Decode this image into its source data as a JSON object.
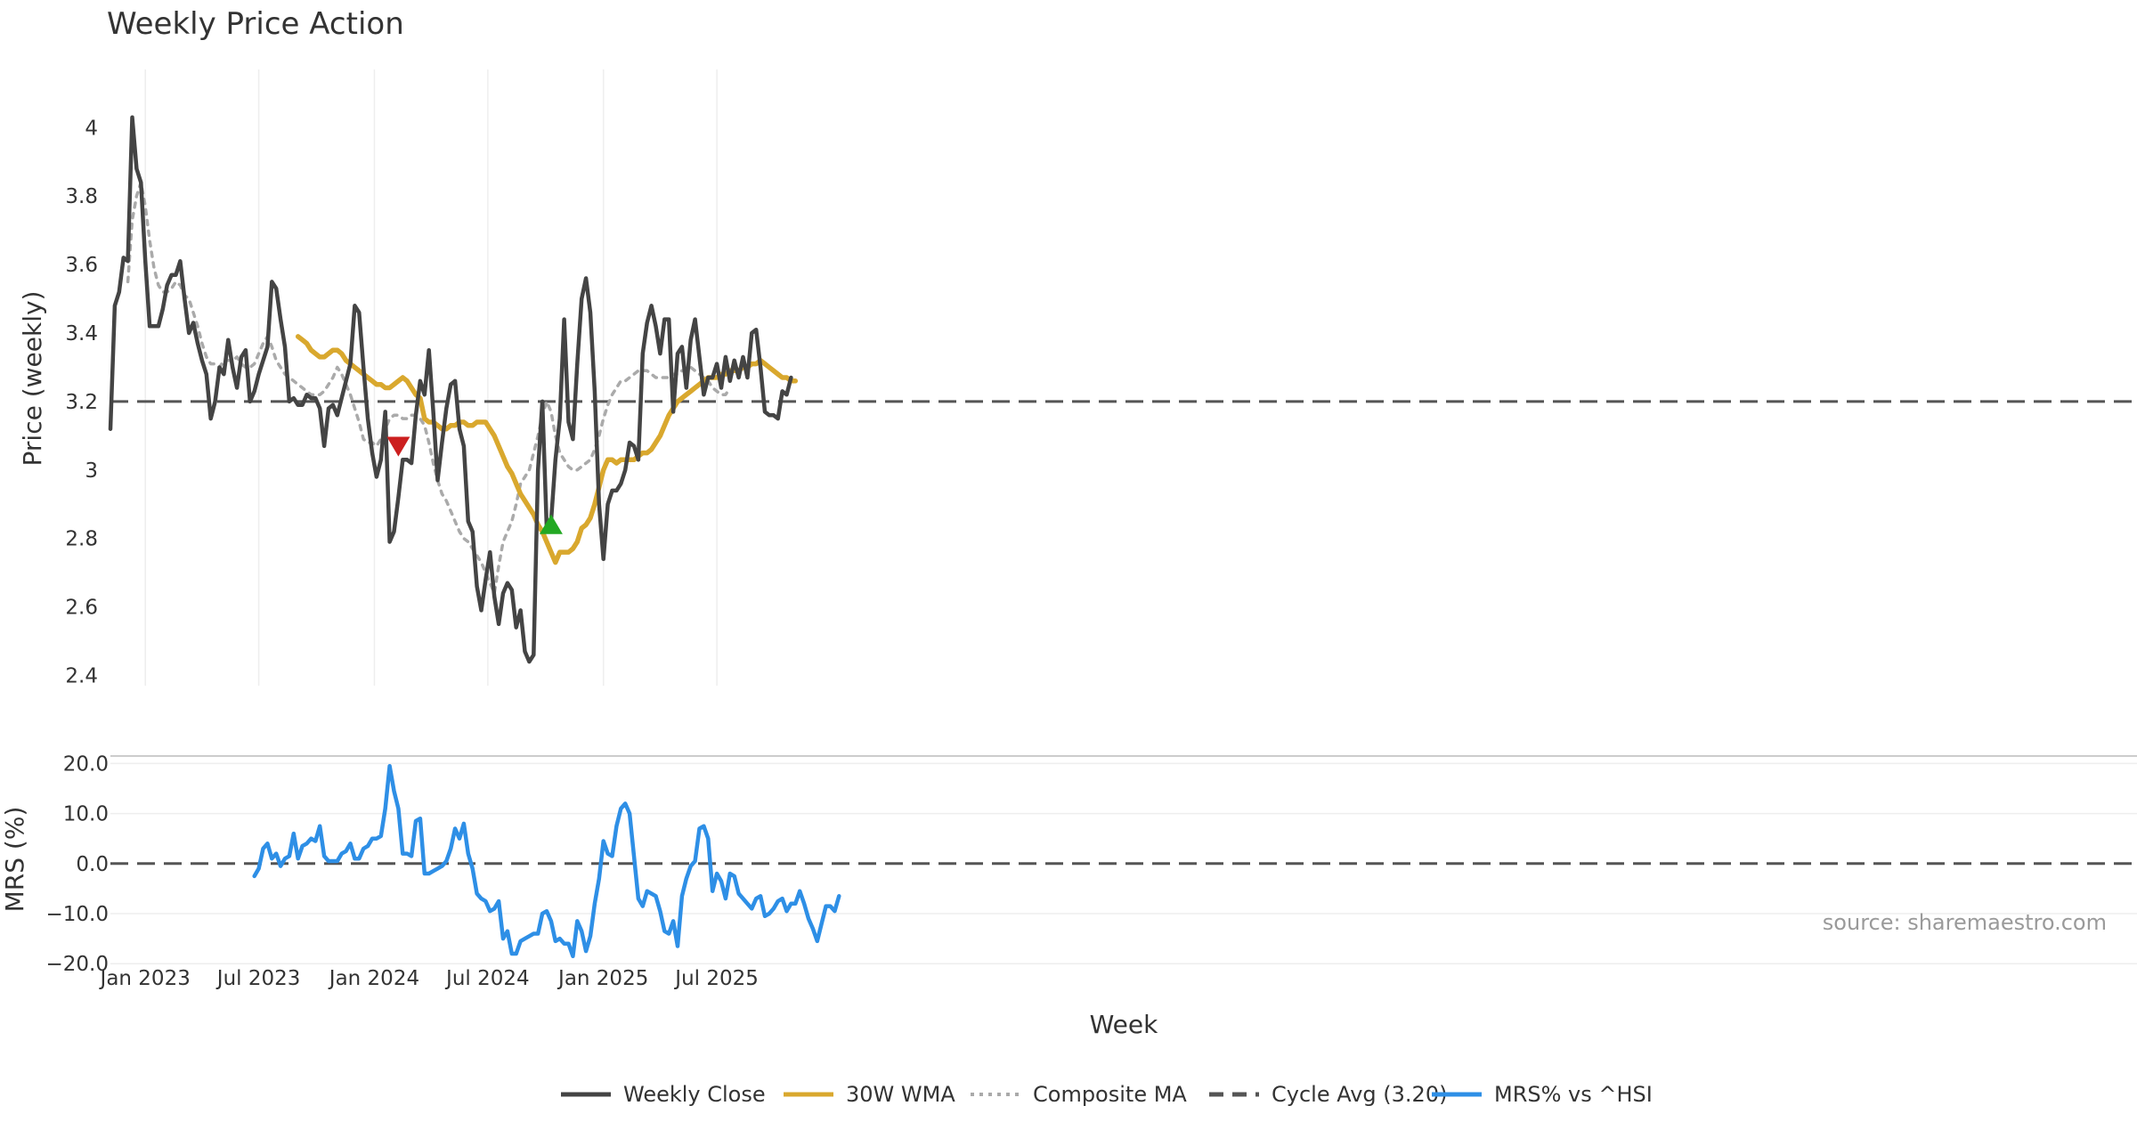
{
  "colors": {
    "close": "#444444",
    "wma": "#d9a82e",
    "composite": "#aaaaaa",
    "cycle": "#555555",
    "mrs": "#2e8fe6",
    "grid": "#eeeeee",
    "buy_marker": "#22a822",
    "sell_marker": "#cc1f1f"
  },
  "chart_data": [
    {
      "type": "line",
      "panel": "price",
      "title": "Weekly Price Action",
      "xlabel": "",
      "ylabel": "Price (weekly)",
      "ylim": [
        2.37,
        4.17
      ],
      "yticks": [
        2.4,
        2.6,
        2.8,
        3.0,
        3.2,
        3.4,
        3.6,
        3.8,
        4.0
      ],
      "ytick_labels": [
        "2.4",
        "2.6",
        "2.8",
        "3",
        "3.2",
        "3.4",
        "3.6",
        "3.8",
        "4"
      ],
      "x_start": "2022-11-07",
      "x_step_days": 7,
      "series": [
        {
          "name": "Weekly Close",
          "style": "solid",
          "values": [
            3.12,
            3.48,
            3.52,
            3.62,
            3.61,
            4.03,
            3.88,
            3.84,
            3.61,
            3.42,
            3.42,
            3.42,
            3.47,
            3.54,
            3.57,
            3.57,
            3.61,
            3.5,
            3.4,
            3.43,
            3.37,
            3.32,
            3.28,
            3.15,
            3.2,
            3.3,
            3.28,
            3.38,
            3.3,
            3.24,
            3.33,
            3.35,
            3.2,
            3.23,
            3.28,
            3.32,
            3.36,
            3.55,
            3.53,
            3.44,
            3.36,
            3.2,
            3.21,
            3.19,
            3.19,
            3.22,
            3.21,
            3.21,
            3.18,
            3.07,
            3.18,
            3.19,
            3.16,
            3.21,
            3.26,
            3.31,
            3.48,
            3.46,
            3.3,
            3.15,
            3.05,
            2.98,
            3.03,
            3.17,
            2.79,
            2.82,
            2.92,
            3.03,
            3.03,
            3.02,
            3.16,
            3.26,
            3.22,
            3.35,
            3.17,
            2.97,
            3.08,
            3.18,
            3.25,
            3.26,
            3.12,
            3.07,
            2.85,
            2.82,
            2.66,
            2.59,
            2.68,
            2.76,
            2.63,
            2.55,
            2.64,
            2.67,
            2.65,
            2.54,
            2.59,
            2.47,
            2.44,
            2.46,
            3.0,
            3.2,
            2.83,
            2.85,
            3.03,
            3.15,
            3.44,
            3.14,
            3.09,
            3.31,
            3.5,
            3.56,
            3.46,
            3.23,
            2.9,
            2.74,
            2.9,
            2.94,
            2.94,
            2.96,
            3.0,
            3.08,
            3.07,
            3.03,
            3.34,
            3.43,
            3.48,
            3.42,
            3.34,
            3.44,
            3.44,
            3.17,
            3.34,
            3.36,
            3.24,
            3.38,
            3.44,
            3.33,
            3.22,
            3.27,
            3.27,
            3.31,
            3.24,
            3.33,
            3.26,
            3.32,
            3.27,
            3.33,
            3.27,
            3.4,
            3.41,
            3.3,
            3.17,
            3.16,
            3.16,
            3.15,
            3.23,
            3.22,
            3.27
          ]
        },
        {
          "name": "30W WMA",
          "style": "solid",
          "start_index": 43,
          "values": [
            3.39,
            3.38,
            3.37,
            3.35,
            3.34,
            3.33,
            3.33,
            3.34,
            3.35,
            3.35,
            3.34,
            3.32,
            3.31,
            3.3,
            3.29,
            3.28,
            3.27,
            3.26,
            3.25,
            3.25,
            3.24,
            3.24,
            3.25,
            3.26,
            3.27,
            3.26,
            3.24,
            3.22,
            3.21,
            3.15,
            3.14,
            3.14,
            3.13,
            3.12,
            3.12,
            3.13,
            3.13,
            3.14,
            3.14,
            3.13,
            3.13,
            3.14,
            3.14,
            3.14,
            3.12,
            3.1,
            3.07,
            3.04,
            3.01,
            2.99,
            2.96,
            2.93,
            2.91,
            2.89,
            2.87,
            2.84,
            2.82,
            2.79,
            2.76,
            2.73,
            2.76,
            2.76,
            2.76,
            2.77,
            2.79,
            2.83,
            2.84,
            2.86,
            2.9,
            2.95,
            3.0,
            3.03,
            3.03,
            3.02,
            3.03,
            3.03,
            3.03,
            3.03,
            3.04,
            3.05,
            3.05,
            3.06,
            3.08,
            3.1,
            3.13,
            3.16,
            3.18,
            3.2,
            3.21,
            3.22,
            3.23,
            3.24,
            3.25,
            3.26,
            3.27,
            3.27,
            3.27,
            3.28,
            3.28,
            3.29,
            3.29,
            3.29,
            3.3,
            3.3,
            3.31,
            3.31,
            3.32,
            3.31,
            3.3,
            3.29,
            3.28,
            3.27,
            3.27,
            3.26,
            3.26
          ]
        },
        {
          "name": "Composite MA",
          "style": "dotted",
          "start_index": 4,
          "values": [
            3.55,
            3.73,
            3.8,
            3.84,
            3.77,
            3.67,
            3.59,
            3.54,
            3.52,
            3.52,
            3.53,
            3.55,
            3.54,
            3.51,
            3.5,
            3.46,
            3.42,
            3.37,
            3.33,
            3.31,
            3.31,
            3.3,
            3.32,
            3.32,
            3.32,
            3.33,
            3.31,
            3.3,
            3.3,
            3.31,
            3.34,
            3.37,
            3.39,
            3.36,
            3.32,
            3.3,
            3.28,
            3.27,
            3.26,
            3.25,
            3.24,
            3.23,
            3.22,
            3.22,
            3.22,
            3.23,
            3.25,
            3.27,
            3.3,
            3.28,
            3.25,
            3.22,
            3.18,
            3.14,
            3.09,
            3.08,
            3.08,
            3.07,
            3.09,
            3.12,
            3.15,
            3.16,
            3.16,
            3.15,
            3.15,
            3.16,
            3.16,
            3.15,
            3.13,
            3.08,
            3.02,
            2.97,
            2.93,
            2.91,
            2.88,
            2.85,
            2.82,
            2.8,
            2.79,
            2.77,
            2.75,
            2.73,
            2.7,
            2.67,
            2.64,
            2.72,
            2.79,
            2.82,
            2.85,
            2.9,
            2.96,
            2.98,
            3.0,
            3.05,
            3.1,
            3.16,
            3.2,
            3.17,
            3.1,
            3.05,
            3.03,
            3.01,
            3.0,
            3.0,
            3.01,
            3.02,
            3.03,
            3.06,
            3.1,
            3.15,
            3.19,
            3.22,
            3.24,
            3.26,
            3.26,
            3.27,
            3.28,
            3.29,
            3.29,
            3.29,
            3.28,
            3.27,
            3.27,
            3.27,
            3.27,
            3.28,
            3.28,
            3.29,
            3.29,
            3.3,
            3.29,
            3.28,
            3.27,
            3.26,
            3.24,
            3.23,
            3.22,
            3.22,
            3.24
          ]
        },
        {
          "name": "Cycle Avg (3.20)",
          "style": "dashed",
          "constant": 3.2
        }
      ],
      "markers": [
        {
          "type": "sell",
          "symbol": "down-triangle",
          "index": 66,
          "value": 3.07
        },
        {
          "type": "buy",
          "symbol": "up-triangle",
          "index": 101,
          "value": 2.84
        }
      ]
    },
    {
      "type": "line",
      "panel": "mrs",
      "xlabel": "Week",
      "ylabel": "MRS (%)",
      "ylim": [
        -20.5,
        21.5
      ],
      "yticks": [
        -20,
        -10,
        0,
        10,
        20
      ],
      "ytick_labels": [
        "−20.0",
        "−10.0",
        "0.0",
        "10.0",
        "20.0"
      ],
      "series": [
        {
          "name": "MRS% vs ^HSI",
          "style": "solid",
          "start_index": 33,
          "values": [
            -2.5,
            -1,
            3,
            4,
            1,
            2,
            -0.5,
            1,
            1.5,
            6,
            1,
            3.5,
            4,
            5,
            4.5,
            7.5,
            1.5,
            0.5,
            0.5,
            0.5,
            2,
            2.5,
            4,
            1,
            1,
            3,
            3.5,
            5,
            5,
            5.5,
            11,
            19.5,
            14.5,
            11,
            2,
            2,
            1.5,
            8.5,
            9,
            -2,
            -2,
            -1.5,
            -1,
            -0.5,
            0.5,
            3,
            7,
            5,
            8,
            2,
            -1,
            -6,
            -7,
            -7.5,
            -9.5,
            -9,
            -7.5,
            -15,
            -13.5,
            -18,
            -18,
            -15.5,
            -15,
            -14.5,
            -14,
            -14,
            -10,
            -9.5,
            -11.5,
            -15.5,
            -15,
            -16,
            -16,
            -18.5,
            -11.5,
            -13.5,
            -17.5,
            -14.5,
            -8,
            -3,
            4.5,
            2,
            1.5,
            7.5,
            11,
            12,
            10,
            1.5,
            -7,
            -8.5,
            -5.5,
            -6,
            -6.5,
            -9.5,
            -13.5,
            -14,
            -11.5,
            -16.5,
            -6.5,
            -3,
            -0.5,
            0.5,
            7,
            7.5,
            5,
            -5.5,
            -2,
            -3.5,
            -7,
            -2,
            -2.5,
            -6,
            -7,
            -8,
            -9,
            -7,
            -6.5,
            -10.5,
            -10,
            -9,
            -7.5,
            -7,
            -9.5,
            -8,
            -8,
            -5.5,
            -8,
            -11,
            -13,
            -15.5,
            -12,
            -8.5,
            -8.5,
            -9.5,
            -6.5
          ]
        },
        {
          "name": "zero line",
          "style": "dashed",
          "constant": 0
        }
      ]
    }
  ],
  "x_axis": {
    "ticks": [
      {
        "label": "Jan 2023",
        "index": 8
      },
      {
        "label": "Jul 2023",
        "index": 34
      },
      {
        "label": "Jan 2024",
        "index": 60.5
      },
      {
        "label": "Jul 2024",
        "index": 86.5
      },
      {
        "label": "Jan 2025",
        "index": 113
      },
      {
        "label": "Jul 2025",
        "index": 139
      }
    ]
  },
  "legend": [
    {
      "label": "Weekly Close",
      "style": "solid",
      "color_key": "close"
    },
    {
      "label": "30W WMA",
      "style": "solid",
      "color_key": "wma"
    },
    {
      "label": "Composite MA",
      "style": "dotted",
      "color_key": "composite"
    },
    {
      "label": "Cycle Avg (3.20)",
      "style": "dashed",
      "color_key": "cycle"
    },
    {
      "label": "MRS% vs ^HSI",
      "style": "solid",
      "color_key": "mrs"
    }
  ],
  "source": "source: sharemaestro.com"
}
